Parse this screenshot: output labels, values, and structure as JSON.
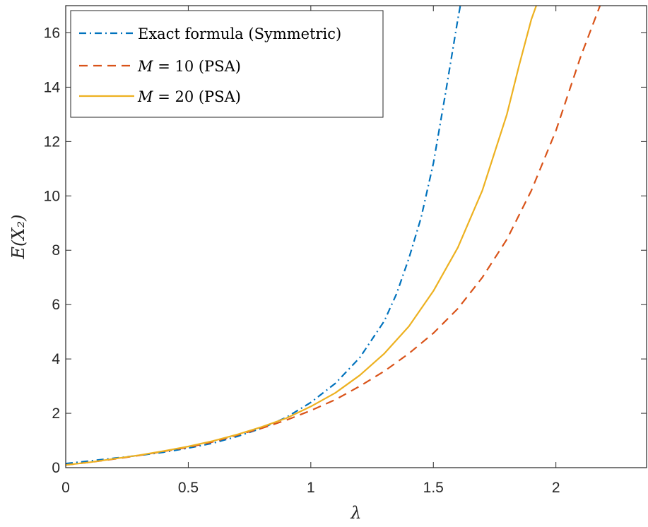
{
  "chart_data": {
    "type": "line",
    "xlabel": "λ",
    "ylabel": "E(X₂)",
    "xlim": [
      0,
      2.37
    ],
    "ylim": [
      0,
      17
    ],
    "xticks": [
      0,
      0.5,
      1,
      1.5,
      2
    ],
    "xtick_labels": [
      "0",
      "0.5",
      "1",
      "1.5",
      "2"
    ],
    "yticks": [
      0,
      2,
      4,
      6,
      8,
      10,
      12,
      14,
      16
    ],
    "ytick_labels": [
      "0",
      "2",
      "4",
      "6",
      "8",
      "10",
      "12",
      "14",
      "16"
    ],
    "grid": false,
    "legend_position": "top-left",
    "series": [
      {
        "name": "Exact formula (Symmetric)",
        "color": "#0072BD",
        "style": "dashdot",
        "x": [
          0,
          0.1,
          0.2,
          0.3,
          0.4,
          0.5,
          0.6,
          0.7,
          0.8,
          0.9,
          1.0,
          1.1,
          1.2,
          1.3,
          1.35,
          1.4,
          1.45,
          1.5,
          1.55,
          1.6,
          1.61
        ],
        "y": [
          0.15,
          0.25,
          0.35,
          0.45,
          0.57,
          0.72,
          0.9,
          1.15,
          1.45,
          1.85,
          2.4,
          3.1,
          4.05,
          5.4,
          6.4,
          7.7,
          9.2,
          11.2,
          13.8,
          16.5,
          17
        ]
      },
      {
        "name": "M = 10 (PSA)",
        "color": "#D95319",
        "style": "dashed",
        "x": [
          0,
          0.1,
          0.2,
          0.3,
          0.4,
          0.5,
          0.6,
          0.7,
          0.8,
          0.9,
          1.0,
          1.1,
          1.2,
          1.3,
          1.4,
          1.5,
          1.6,
          1.7,
          1.8,
          1.9,
          2.0,
          2.1,
          2.18
        ],
        "y": [
          0.1,
          0.2,
          0.32,
          0.45,
          0.6,
          0.75,
          0.95,
          1.2,
          1.45,
          1.75,
          2.1,
          2.5,
          3.0,
          3.55,
          4.2,
          4.95,
          5.85,
          7.0,
          8.4,
          10.2,
          12.4,
          15.1,
          17
        ]
      },
      {
        "name": "M = 20 (PSA)",
        "color": "#EDB120",
        "style": "solid",
        "x": [
          0,
          0.1,
          0.2,
          0.3,
          0.4,
          0.5,
          0.6,
          0.7,
          0.8,
          0.9,
          1.0,
          1.1,
          1.2,
          1.3,
          1.4,
          1.5,
          1.6,
          1.7,
          1.8,
          1.85,
          1.9,
          1.92
        ],
        "y": [
          0.1,
          0.2,
          0.33,
          0.46,
          0.61,
          0.78,
          0.98,
          1.22,
          1.5,
          1.82,
          2.25,
          2.75,
          3.4,
          4.2,
          5.2,
          6.5,
          8.1,
          10.2,
          13.0,
          14.8,
          16.5,
          17
        ]
      }
    ]
  },
  "legend": {
    "entry_1": {
      "pre": "Exact formula (Symmetric)",
      "var": "",
      "post": ""
    },
    "entry_2": {
      "pre": "",
      "var": "M",
      "post": " = 10 (PSA)"
    },
    "entry_3": {
      "pre": "",
      "var": "M",
      "post": " = 20 (PSA)"
    }
  }
}
